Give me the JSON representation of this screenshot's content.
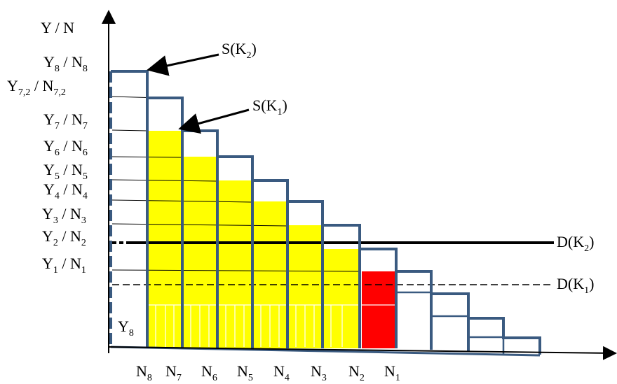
{
  "axes": {
    "y_label": "Y / N"
  },
  "y_ticks": [
    {
      "id": "y8",
      "base": "Y",
      "bsub": "8",
      "mid": " / ",
      "n": "N",
      "nsub": "8"
    },
    {
      "id": "y72",
      "base": "Y",
      "bsub": "7,2",
      "mid": " / ",
      "n": "N",
      "nsub": "7,2"
    },
    {
      "id": "y7",
      "base": "Y",
      "bsub": "7",
      "mid": " / ",
      "n": "N",
      "nsub": "7"
    },
    {
      "id": "y6",
      "base": "Y",
      "bsub": "6",
      "mid": " / ",
      "n": "N",
      "nsub": "6"
    },
    {
      "id": "y5",
      "base": "Y",
      "bsub": "5",
      "mid": " / ",
      "n": "N",
      "nsub": "5"
    },
    {
      "id": "y4",
      "base": "Y",
      "bsub": "4",
      "mid": " / ",
      "n": "N",
      "nsub": "4"
    },
    {
      "id": "y3",
      "base": "Y",
      "bsub": "3",
      "mid": " / ",
      "n": "N",
      "nsub": "3"
    },
    {
      "id": "y2",
      "base": "Y",
      "bsub": "2",
      "mid": " / ",
      "n": "N",
      "nsub": "2"
    },
    {
      "id": "y1",
      "base": "Y",
      "bsub": "1",
      "mid": " / ",
      "n": "N",
      "nsub": "1"
    }
  ],
  "x_ticks": [
    {
      "id": "n8",
      "base": "N",
      "sub": "8"
    },
    {
      "id": "n7",
      "base": "N",
      "sub": "7"
    },
    {
      "id": "n6",
      "base": "N",
      "sub": "6"
    },
    {
      "id": "n5",
      "base": "N",
      "sub": "5"
    },
    {
      "id": "n4",
      "base": "N",
      "sub": "4"
    },
    {
      "id": "n3",
      "base": "N",
      "sub": "3"
    },
    {
      "id": "n2",
      "base": "N",
      "sub": "2"
    },
    {
      "id": "n1",
      "base": "N",
      "sub": "1"
    }
  ],
  "supply_labels": {
    "s2": {
      "base": "S(K",
      "sub": "2",
      "end": ")"
    },
    "s1": {
      "base": "S(K",
      "sub": "1",
      "end": ")"
    }
  },
  "demand_labels": {
    "d2": {
      "base": "D(K",
      "sub": "2",
      "end": ")"
    },
    "d1": {
      "base": "D(K",
      "sub": "1",
      "end": ")"
    }
  },
  "inner_label": {
    "base": "Y",
    "sub": "8"
  },
  "colors": {
    "bar_outline": "#3a5a80",
    "fill_yellow": "#ffff00",
    "fill_red": "#ff0000",
    "axis": "#000000"
  }
}
